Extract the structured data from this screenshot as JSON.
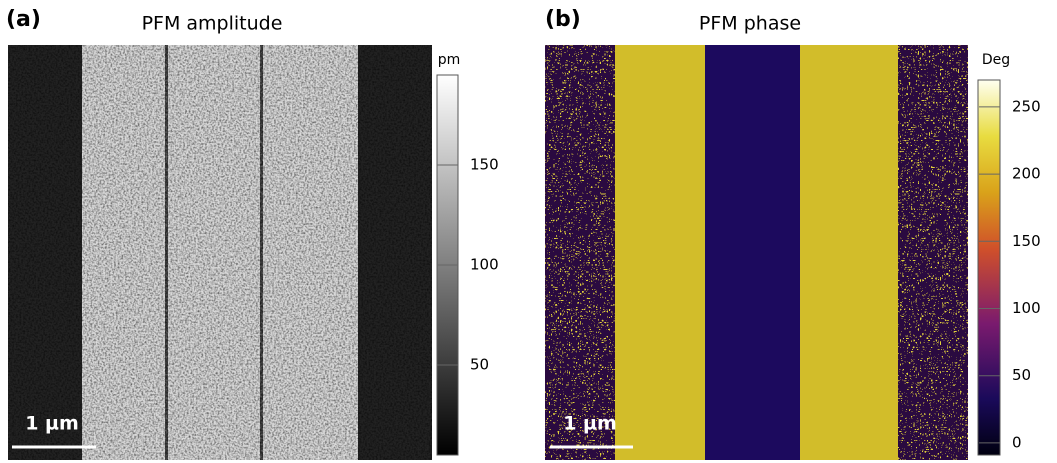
{
  "panels": [
    {
      "label": "(a)",
      "title": "PFM amplitude",
      "scale_bar": "1 µm",
      "colorbar": {
        "unit": "pm",
        "range": [
          5,
          195
        ],
        "ticks": [
          50,
          100,
          150
        ]
      }
    },
    {
      "label": "(b)",
      "title": "PFM phase",
      "scale_bar": "1 µm",
      "colorbar": {
        "unit": "Deg",
        "range": [
          -9,
          270
        ],
        "ticks": [
          0,
          50,
          100,
          150,
          200,
          250
        ]
      }
    }
  ]
}
